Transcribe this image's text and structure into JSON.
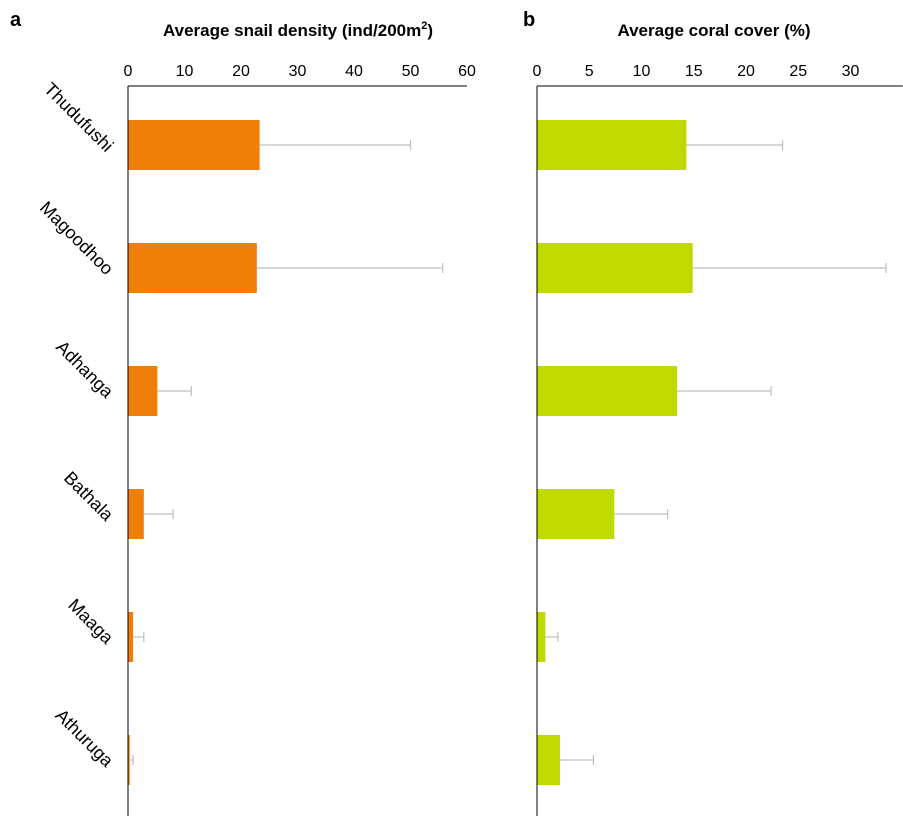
{
  "chart_data": [
    {
      "panel": "a",
      "type": "bar",
      "orientation": "horizontal",
      "title": "Average snail density (ind/200m",
      "title_superscript": "2",
      "title_suffix": ")",
      "categories": [
        "Thudufushi",
        "Magoodhoo",
        "Adhanga",
        "Bathala",
        "Maaga",
        "Athuruga"
      ],
      "values": [
        23.3,
        22.8,
        5.2,
        2.8,
        0.9,
        0.3
      ],
      "error_upper": [
        50.0,
        55.7,
        11.2,
        8.0,
        2.8,
        0.9
      ],
      "xlim": [
        0,
        60
      ],
      "xticks": [
        "0",
        "10",
        "20",
        "30",
        "40",
        "50",
        "60"
      ],
      "color": "#f07f09",
      "error_color": "#bfbfbf"
    },
    {
      "panel": "b",
      "type": "bar",
      "orientation": "horizontal",
      "title": "Average coral cover (%)",
      "categories": [
        "Thudufushi",
        "Magoodhoo",
        "Adhanga",
        "Bathala",
        "Maaga",
        "Athuruga"
      ],
      "values": [
        14.3,
        14.9,
        13.4,
        7.4,
        0.8,
        2.2
      ],
      "error_upper": [
        23.5,
        33.4,
        22.4,
        12.5,
        2.0,
        5.4
      ],
      "xlim": [
        0,
        35
      ],
      "xticks": [
        "0",
        "5",
        "10",
        "15",
        "20",
        "25",
        "30"
      ],
      "color": "#c2d900",
      "error_color": "#bfbfbf"
    }
  ]
}
